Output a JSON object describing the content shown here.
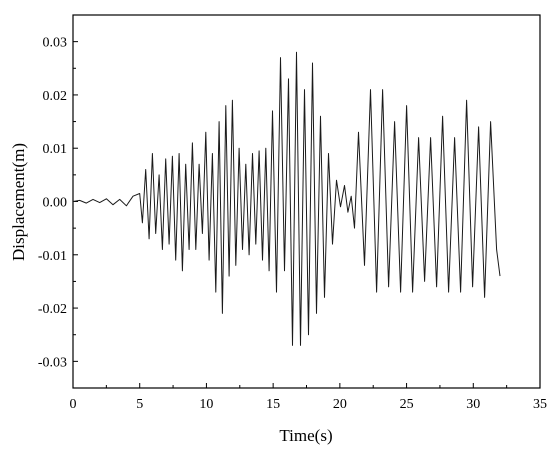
{
  "chart_data": {
    "type": "line",
    "xlabel": "Time(s)",
    "ylabel": "Displacement(m)",
    "xlim": [
      0,
      35
    ],
    "ylim": [
      -0.035,
      0.035
    ],
    "xticks": [
      "0",
      "5",
      "10",
      "15",
      "20",
      "25",
      "30",
      "35"
    ],
    "yticks": [
      "-0.03",
      "-0.02",
      "-0.01",
      "0.00",
      "0.01",
      "0.02",
      "0.03"
    ],
    "grid": false,
    "line_color": "#1a1a1a",
    "series": [
      {
        "x": [
          0,
          0.5,
          1.0,
          1.5,
          2.0,
          2.5,
          3.0,
          3.5,
          4.0,
          4.5,
          5.0,
          5.2,
          5.45,
          5.7,
          5.95,
          6.2,
          6.45,
          6.7,
          6.95,
          7.2,
          7.45,
          7.7,
          7.95,
          8.2,
          8.45,
          8.7,
          8.95,
          9.2,
          9.45,
          9.7,
          9.95,
          10.2,
          10.45,
          10.7,
          10.95,
          11.2,
          11.45,
          11.7,
          11.95,
          12.2,
          12.45,
          12.7,
          12.95,
          13.2,
          13.45,
          13.7,
          13.95,
          14.2,
          14.45,
          14.7,
          14.95,
          15.25,
          15.55,
          15.85,
          16.15,
          16.45,
          16.75,
          17.05,
          17.35,
          17.65,
          17.95,
          18.25,
          18.55,
          18.85,
          19.15,
          19.45,
          19.75,
          20.05,
          20.35,
          20.6,
          20.85,
          21.1,
          21.4,
          21.85,
          22.3,
          22.75,
          23.2,
          23.65,
          24.1,
          24.55,
          25.0,
          25.45,
          25.9,
          26.35,
          26.8,
          27.25,
          27.7,
          28.15,
          28.6,
          29.05,
          29.5,
          29.95,
          30.4,
          30.85,
          31.3,
          31.75,
          32.0
        ],
        "y": [
          0,
          0.0002,
          -0.0003,
          0.0004,
          -0.0002,
          0.0005,
          -0.0006,
          0.0004,
          -0.0008,
          0.001,
          0.0015,
          -0.004,
          0.006,
          -0.007,
          0.009,
          -0.006,
          0.005,
          -0.009,
          0.008,
          -0.008,
          0.0085,
          -0.011,
          0.009,
          -0.013,
          0.007,
          -0.009,
          0.011,
          -0.009,
          0.007,
          -0.006,
          0.013,
          -0.011,
          0.009,
          -0.017,
          0.015,
          -0.021,
          0.018,
          -0.014,
          0.019,
          -0.012,
          0.01,
          -0.009,
          0.007,
          -0.01,
          0.009,
          -0.008,
          0.0095,
          -0.011,
          0.01,
          -0.013,
          0.017,
          -0.017,
          0.027,
          -0.013,
          0.023,
          -0.027,
          0.028,
          -0.027,
          0.021,
          -0.025,
          0.026,
          -0.021,
          0.016,
          -0.018,
          0.009,
          -0.008,
          0.004,
          -0.001,
          0.003,
          -0.002,
          0.001,
          -0.005,
          0.013,
          -0.012,
          0.021,
          -0.017,
          0.021,
          -0.016,
          0.015,
          -0.017,
          0.018,
          -0.017,
          0.012,
          -0.015,
          0.012,
          -0.016,
          0.016,
          -0.017,
          0.012,
          -0.017,
          0.019,
          -0.016,
          0.014,
          -0.018,
          0.015,
          -0.009,
          -0.014
        ]
      }
    ]
  }
}
